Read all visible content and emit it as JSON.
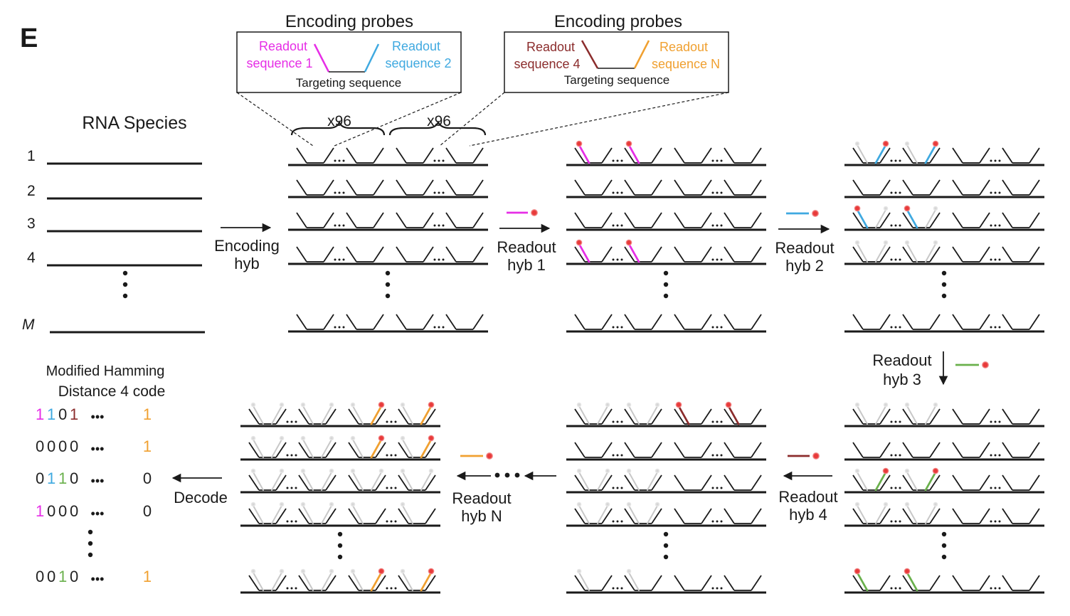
{
  "panel_label": "E",
  "encoding_boxes": [
    {
      "title": "Encoding probes",
      "left_label": [
        "Readout",
        "sequence 1"
      ],
      "right_label": [
        "Readout",
        "sequence 2"
      ],
      "bottom_label": "Targeting sequence",
      "left_color": "#e62ee6",
      "right_color": "#3fa9e0"
    },
    {
      "title": "Encoding probes",
      "left_label": [
        "Readout",
        "sequence 4"
      ],
      "right_label": [
        "Readout",
        "sequence N"
      ],
      "bottom_label": "Targeting sequence",
      "left_color": "#8b2c2c",
      "right_color": "#f0a030"
    }
  ],
  "rna": {
    "title": "RNA Species",
    "rows": [
      "1",
      "2",
      "3",
      "4",
      "M"
    ]
  },
  "brace_labels": [
    "x96",
    "x96"
  ],
  "ellipsis": "...",
  "steps": {
    "encoding": [
      "Encoding",
      "hyb"
    ],
    "hyb1": [
      "Readout",
      "hyb 1"
    ],
    "hyb2": [
      "Readout",
      "hyb 2"
    ],
    "hyb3": [
      "Readout",
      "hyb 3"
    ],
    "hyb4": [
      "Readout",
      "hyb 4"
    ],
    "hybN": [
      "Readout",
      "hyb N"
    ],
    "decode": "Decode"
  },
  "code": {
    "title1": "Modified Hamming",
    "title2": "Distance 4 code",
    "rows": [
      {
        "bits": [
          "1",
          "1",
          "0",
          "1"
        ],
        "colors": [
          "#e62ee6",
          "#3fa9e0",
          "#222222",
          "#8b2c2c"
        ],
        "last": "1",
        "last_color": "#f0a030"
      },
      {
        "bits": [
          "0",
          "0",
          "0",
          "0"
        ],
        "colors": [
          "#222222",
          "#222222",
          "#222222",
          "#222222"
        ],
        "last": "1",
        "last_color": "#f0a030"
      },
      {
        "bits": [
          "0",
          "1",
          "1",
          "0"
        ],
        "colors": [
          "#222222",
          "#3fa9e0",
          "#6ab04c",
          "#222222"
        ],
        "last": "0",
        "last_color": "#222222"
      },
      {
        "bits": [
          "1",
          "0",
          "0",
          "0"
        ],
        "colors": [
          "#e62ee6",
          "#222222",
          "#222222",
          "#222222"
        ],
        "last": "0",
        "last_color": "#222222"
      },
      {
        "bits": [
          "0",
          "0",
          "1",
          "0"
        ],
        "colors": [
          "#222222",
          "#222222",
          "#6ab04c",
          "#222222"
        ],
        "last": "1",
        "last_color": "#f0a030"
      }
    ],
    "dots": "•••"
  },
  "colors": {
    "magenta": "#e62ee6",
    "blue": "#3fa9e0",
    "green": "#6ab04c",
    "brown": "#8b2c2c",
    "orange": "#f0a030",
    "gray": "#c8c8c8",
    "red_dot": "#e83a3a"
  }
}
